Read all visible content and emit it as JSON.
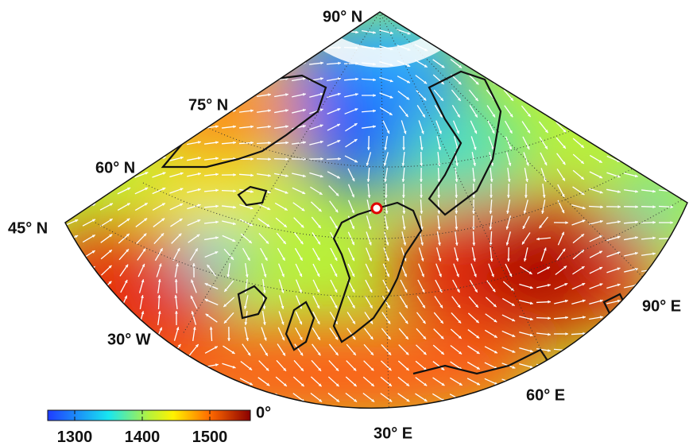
{
  "map": {
    "labels": {
      "lat90": "90° N",
      "lat75": "75° N",
      "lat60": "60° N",
      "lat45": "45° N",
      "lon30w": "30° W",
      "lon30e": "30° E",
      "lon60e": "60° E",
      "lon90e": "90° E",
      "zero": "0°"
    },
    "colorbar": {
      "lim": [
        1260,
        1560
      ],
      "ticks": [
        1300,
        1400,
        1500
      ]
    }
  }
}
